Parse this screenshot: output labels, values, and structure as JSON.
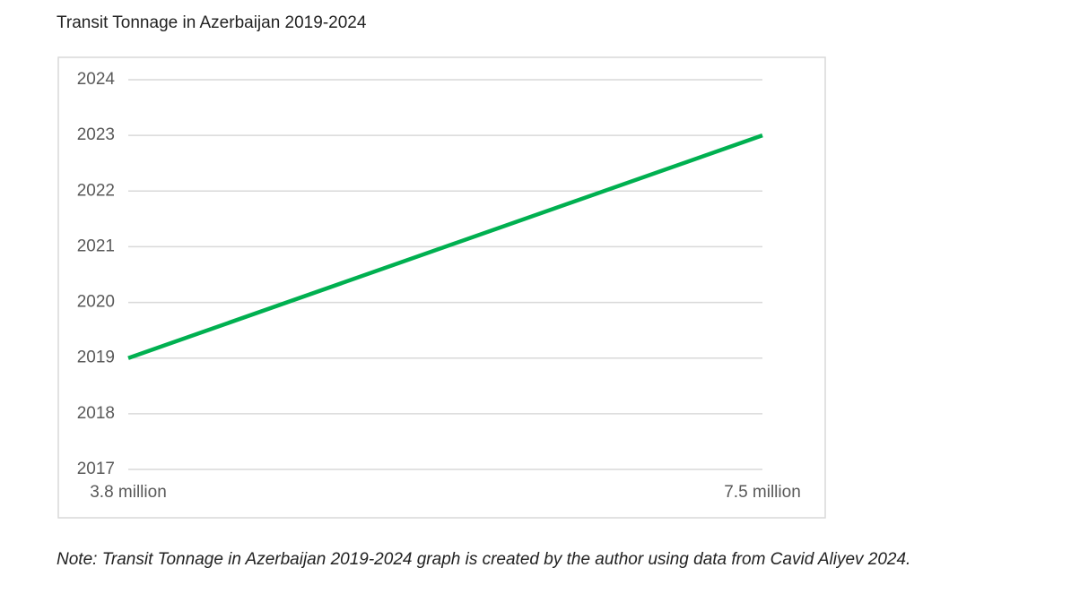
{
  "chart_data": {
    "type": "line",
    "title": "Transit Tonnage in Azerbaijan 2019-2024",
    "note": "Note: Transit Tonnage in Azerbaijan 2019-2024 graph is created by the author using data from Cavid Aliyev 2024.",
    "x": [
      3800000,
      7500000
    ],
    "series": [
      {
        "color": "#00b050",
        "values": [
          2019,
          2023
        ]
      }
    ],
    "xlim": [
      3800000,
      7500000
    ],
    "xticks": [
      {
        "value": 3800000,
        "label": "3.8 million"
      },
      {
        "value": 7500000,
        "label": "7.5 million"
      }
    ],
    "ylim": [
      2017,
      2024
    ],
    "yticks": [
      2017,
      2018,
      2019,
      2020,
      2021,
      2022,
      2023,
      2024
    ],
    "grid": true
  }
}
